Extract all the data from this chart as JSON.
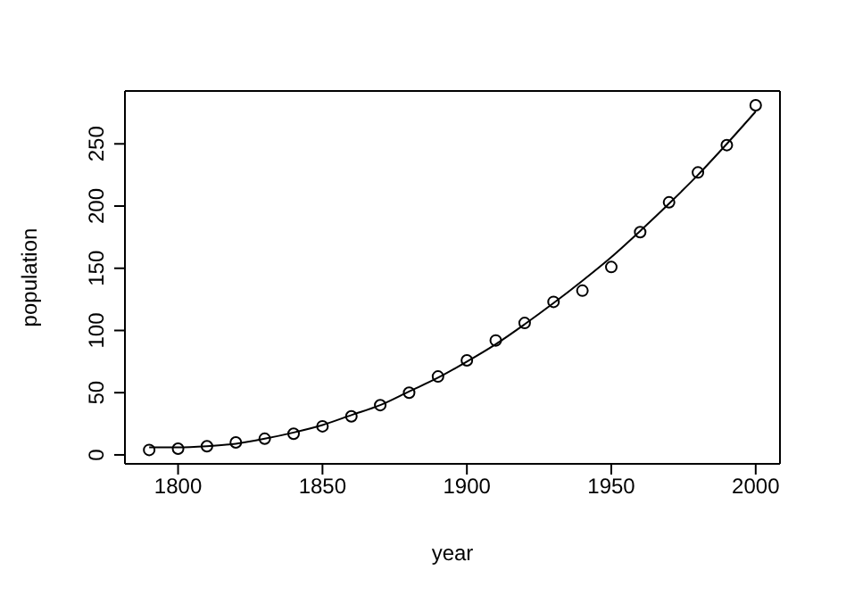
{
  "chart_data": {
    "type": "scatter",
    "xlabel": "year",
    "ylabel": "population",
    "x": [
      1790,
      1800,
      1810,
      1820,
      1830,
      1840,
      1850,
      1860,
      1870,
      1880,
      1890,
      1900,
      1910,
      1920,
      1930,
      1940,
      1950,
      1960,
      1970,
      1980,
      1990,
      2000
    ],
    "series": [
      {
        "type": "scatter",
        "color": "#000000",
        "marker": "circle",
        "values": [
          4,
          5,
          7,
          10,
          13,
          17,
          23,
          31,
          40,
          50,
          63,
          76,
          92,
          106,
          123,
          132,
          151,
          179,
          203,
          227,
          249,
          281
        ]
      },
      {
        "type": "line",
        "color": "#000000",
        "marker": "none",
        "line_style": "solid",
        "values": [
          6,
          6,
          7,
          9,
          13,
          18,
          24,
          32,
          40,
          51,
          62,
          75,
          89,
          105,
          122,
          140,
          159,
          180,
          202,
          225,
          250,
          276
        ]
      }
    ],
    "xlim": [
      1781.6,
      2008.4
    ],
    "xticks": [
      1800,
      1850,
      1900,
      1950,
      2000
    ],
    "ylim": [
      -7.2,
      292.5
    ],
    "yticks": [
      0,
      50,
      100,
      150,
      200,
      250
    ],
    "grid": false,
    "legend": false
  }
}
